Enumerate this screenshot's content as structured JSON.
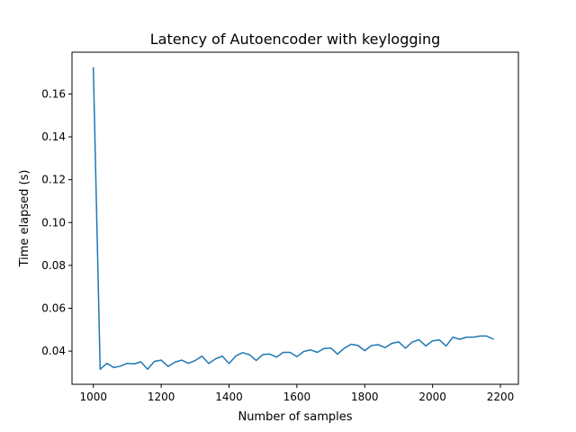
{
  "chart_data": {
    "type": "line",
    "title": "Latency of Autoencoder with keylogging",
    "xlabel": "Number of samples",
    "ylabel": "Time elapsed (s)",
    "xlim": [
      937,
      2253
    ],
    "ylim": [
      0.0245,
      0.1795
    ],
    "x_ticks": [
      1000,
      1200,
      1400,
      1600,
      1800,
      2000,
      2200
    ],
    "x_tick_labels": [
      "1000",
      "1200",
      "1400",
      "1600",
      "1800",
      "2000",
      "2200"
    ],
    "y_ticks": [
      0.04,
      0.06,
      0.08,
      0.1,
      0.12,
      0.14,
      0.16
    ],
    "y_tick_labels": [
      "0.04",
      "0.06",
      "0.08",
      "0.10",
      "0.12",
      "0.14",
      "0.16"
    ],
    "grid": false,
    "series": [
      {
        "color": "#1f77b4",
        "x": [
          1000,
          1020,
          1040,
          1060,
          1080,
          1100,
          1120,
          1140,
          1160,
          1180,
          1200,
          1220,
          1240,
          1260,
          1280,
          1300,
          1320,
          1340,
          1360,
          1380,
          1400,
          1420,
          1440,
          1460,
          1480,
          1500,
          1520,
          1540,
          1560,
          1580,
          1600,
          1620,
          1640,
          1660,
          1680,
          1700,
          1720,
          1740,
          1760,
          1780,
          1800,
          1820,
          1840,
          1860,
          1880,
          1900,
          1920,
          1940,
          1960,
          1980,
          2000,
          2020,
          2040,
          2060,
          2080,
          2100,
          2120,
          2140,
          2160,
          2180
        ],
        "y": [
          0.1725,
          0.0315,
          0.0343,
          0.0323,
          0.033,
          0.0343,
          0.034,
          0.035,
          0.0315,
          0.0352,
          0.0358,
          0.0328,
          0.0348,
          0.0358,
          0.0343,
          0.0356,
          0.0376,
          0.0342,
          0.0364,
          0.0376,
          0.0342,
          0.0377,
          0.0393,
          0.0383,
          0.0356,
          0.0384,
          0.0386,
          0.0372,
          0.0394,
          0.0394,
          0.0374,
          0.0398,
          0.0406,
          0.0394,
          0.0412,
          0.0414,
          0.0386,
          0.0414,
          0.0432,
          0.0426,
          0.0402,
          0.0426,
          0.043,
          0.0416,
          0.0436,
          0.0443,
          0.0413,
          0.0442,
          0.0453,
          0.0424,
          0.0448,
          0.0452,
          0.0424,
          0.0465,
          0.0455,
          0.0465,
          0.0465,
          0.047,
          0.047,
          0.0455
        ]
      }
    ]
  }
}
